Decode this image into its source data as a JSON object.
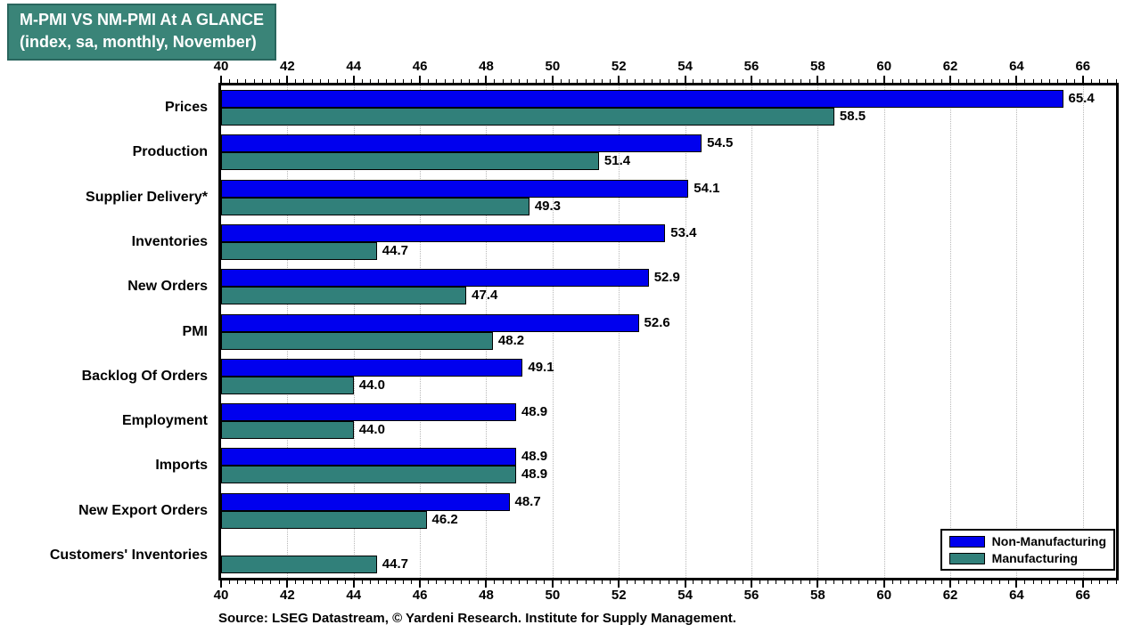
{
  "title_box": {
    "line1": "M-PMI VS NM-PMI At A GLANCE",
    "line2": "(index, sa, monthly, November)"
  },
  "source": "Source: LSEG Datastream, © Yardeni Research. Institute for Supply Management.",
  "colors": {
    "non_manufacturing": "#0000EE",
    "manufacturing": "#31807A",
    "title_bg": "#3A8478",
    "title_border": "#2A665E",
    "grid": "#b8b8b8",
    "axis": "#000000"
  },
  "legend": [
    {
      "label": "Non-Manufacturing",
      "color_key": "non_manufacturing"
    },
    {
      "label": "Manufacturing",
      "color_key": "manufacturing"
    }
  ],
  "chart_data": {
    "type": "bar",
    "orientation": "horizontal",
    "title": "M-PMI VS NM-PMI At A GLANCE (index, sa, monthly, November)",
    "categories": [
      "Prices",
      "Production",
      "Supplier Delivery*",
      "Inventories",
      "New Orders",
      "PMI",
      "Backlog Of Orders",
      "Employment",
      "Imports",
      "New Export Orders",
      "Customers' Inventories"
    ],
    "series": [
      {
        "name": "Non-Manufacturing",
        "color_key": "non_manufacturing",
        "values": [
          65.4,
          54.5,
          54.1,
          53.4,
          52.9,
          52.6,
          49.1,
          48.9,
          48.9,
          48.7,
          null
        ]
      },
      {
        "name": "Manufacturing",
        "color_key": "manufacturing",
        "values": [
          58.5,
          51.4,
          49.3,
          44.7,
          47.4,
          48.2,
          44.0,
          44.0,
          48.9,
          46.2,
          44.7
        ]
      }
    ],
    "xlim": [
      40,
      67
    ],
    "axis_tick_labels": [
      40,
      42,
      44,
      46,
      48,
      50,
      52,
      54,
      56,
      58,
      60,
      62,
      64,
      66
    ],
    "minor_tick_step": 0.25,
    "major_tick_step": 2,
    "grid": "vertical dotted at major ticks",
    "value_labels": "end of each bar, one decimal",
    "legend_position": "bottom-right inside plot",
    "axes": "ticks and labels on top and bottom"
  }
}
